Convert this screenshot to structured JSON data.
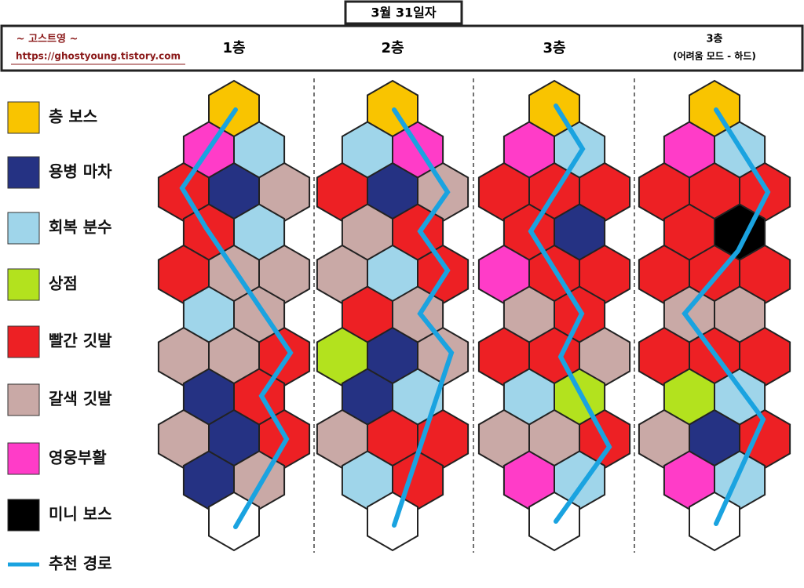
{
  "header": {
    "title": "3월 31일자",
    "blog_name": "~ 고스트영 ~",
    "blog_url": "https://ghostyoung.tistory.com"
  },
  "legend": [
    {
      "label": "층 보스",
      "color": "#f9c400"
    },
    {
      "label": "용병 마차",
      "color": "#253283"
    },
    {
      "label": "회복 분수",
      "color": "#9fd5ea"
    },
    {
      "label": "상점",
      "color": "#b3e21e"
    },
    {
      "label": "빨간 깃발",
      "color": "#ed2024"
    },
    {
      "label": "갈색 깃발",
      "color": "#c9a9a6"
    },
    {
      "label": "영웅부활",
      "color": "#ff3cc8"
    },
    {
      "label": "미니 보스",
      "color": "#000000"
    },
    {
      "label": "추천 경로",
      "color": "#1aa3e0"
    }
  ],
  "floors": [
    {
      "label": "1층",
      "rows": [
        [
          "#f9c400"
        ],
        [
          "#ff3cc8",
          "#9fd5ea"
        ],
        [
          "#ed2024",
          "#253283",
          "#c9a9a6"
        ],
        [
          "#ed2024",
          "#9fd5ea"
        ],
        [
          "#ed2024",
          "#c9a9a6",
          "#c9a9a6"
        ],
        [
          "#9fd5ea",
          "#c9a9a6"
        ],
        [
          "#c9a9a6",
          "#c9a9a6",
          "#ed2024"
        ],
        [
          "#253283",
          "#ed2024"
        ],
        [
          "#c9a9a6",
          "#253283",
          "#ed2024"
        ],
        [
          "#253283",
          "#c9a9a6"
        ],
        [
          "#ffffff"
        ]
      ]
    },
    {
      "label": "2층",
      "rows": [
        [
          "#f9c400"
        ],
        [
          "#9fd5ea",
          "#ff3cc8"
        ],
        [
          "#ed2024",
          "#253283",
          "#c9a9a6"
        ],
        [
          "#c9a9a6",
          "#ed2024"
        ],
        [
          "#c9a9a6",
          "#9fd5ea",
          "#ed2024"
        ],
        [
          "#ed2024",
          "#c9a9a6"
        ],
        [
          "#b3e21e",
          "#253283",
          "#c9a9a6"
        ],
        [
          "#253283",
          "#9fd5ea"
        ],
        [
          "#c9a9a6",
          "#ed2024",
          "#ed2024"
        ],
        [
          "#9fd5ea",
          "#ed2024"
        ],
        [
          "#ffffff"
        ]
      ]
    },
    {
      "label": "3층",
      "rows": [
        [
          "#f9c400"
        ],
        [
          "#ff3cc8",
          "#9fd5ea"
        ],
        [
          "#ed2024",
          "#ed2024",
          "#ed2024"
        ],
        [
          "#ed2024",
          "#253283"
        ],
        [
          "#ff3cc8",
          "#ed2024",
          "#ed2024"
        ],
        [
          "#c9a9a6",
          "#ed2024"
        ],
        [
          "#ed2024",
          "#ed2024",
          "#c9a9a6"
        ],
        [
          "#9fd5ea",
          "#b3e21e"
        ],
        [
          "#c9a9a6",
          "#c9a9a6",
          "#ed2024"
        ],
        [
          "#ff3cc8",
          "#9fd5ea"
        ],
        [
          "#ffffff"
        ]
      ]
    },
    {
      "label": "3층",
      "sublabel": "(어려움 모드 - 하드)",
      "rows": [
        [
          "#f9c400"
        ],
        [
          "#ff3cc8",
          "#9fd5ea"
        ],
        [
          "#ed2024",
          "#ed2024",
          "#ed2024"
        ],
        [
          "#ed2024",
          "#000000"
        ],
        [
          "#ed2024",
          "#ed2024",
          "#ed2024"
        ],
        [
          "#c9a9a6",
          "#c9a9a6"
        ],
        [
          "#ed2024",
          "#ed2024",
          "#ed2024"
        ],
        [
          "#b3e21e",
          "#9fd5ea"
        ],
        [
          "#c9a9a6",
          "#253283",
          "#ed2024"
        ],
        [
          "#ff3cc8",
          "#9fd5ea"
        ],
        [
          "#ffffff"
        ]
      ]
    }
  ]
}
